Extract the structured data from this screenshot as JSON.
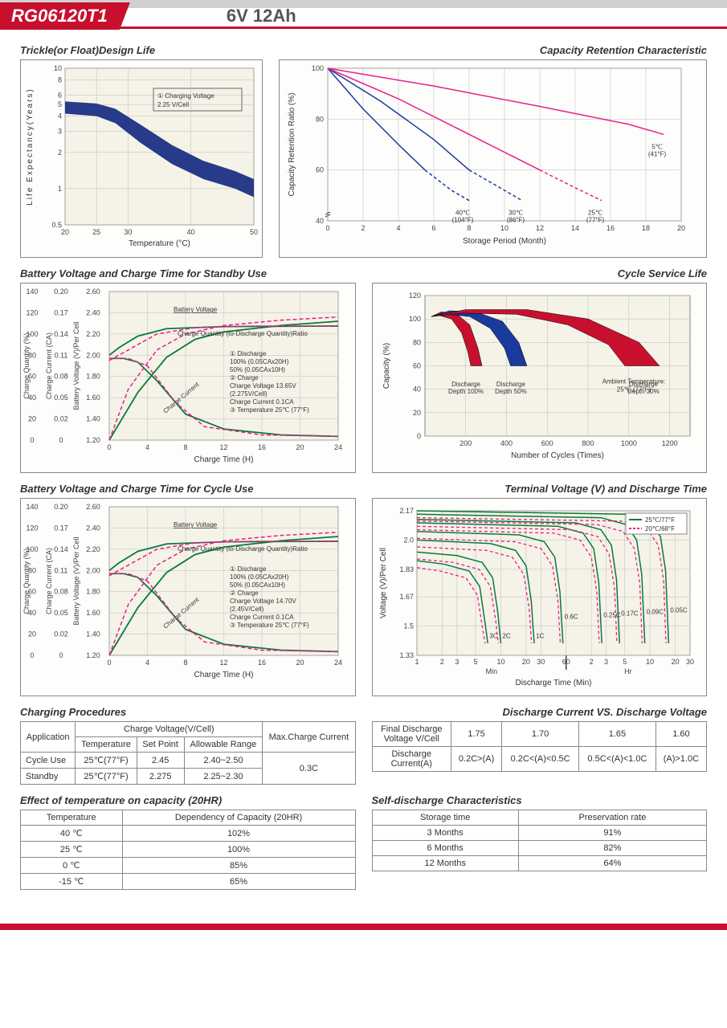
{
  "header": {
    "model": "RG06120T1",
    "spec": "6V  12Ah"
  },
  "charts": {
    "trickle": {
      "title": "Trickle(or Float)Design Life",
      "xlabel": "Temperature (°C)",
      "ylabel": "Life Expectancy(Years)",
      "annotation": "① Charging Voltage\n    2.25 V/Cell",
      "xticks": [
        "20",
        "25",
        "30",
        "40",
        "50"
      ],
      "yticks": [
        "0.5",
        "1",
        "2",
        "3",
        "4",
        "5",
        "6",
        "8",
        "10"
      ],
      "band_upper": [
        [
          20,
          5.3
        ],
        [
          25,
          5.1
        ],
        [
          28,
          4.6
        ],
        [
          32,
          3.4
        ],
        [
          37,
          2.3
        ],
        [
          42,
          1.7
        ],
        [
          47,
          1.4
        ],
        [
          50,
          1.2
        ]
      ],
      "band_lower": [
        [
          20,
          4.2
        ],
        [
          25,
          4.0
        ],
        [
          28,
          3.5
        ],
        [
          32,
          2.4
        ],
        [
          37,
          1.6
        ],
        [
          42,
          1.2
        ],
        [
          47,
          1.0
        ],
        [
          50,
          0.85
        ]
      ],
      "band_color": "#283a8a",
      "bg": "#f5f3e8"
    },
    "retention": {
      "title": "Capacity Retention Characteristic",
      "xlabel": "Storage Period (Month)",
      "ylabel": "Capacity Retention Ratio (%)",
      "xticks": [
        "0",
        "2",
        "4",
        "6",
        "8",
        "10",
        "12",
        "14",
        "16",
        "18",
        "20"
      ],
      "yticks": [
        "40",
        "60",
        "80",
        "100"
      ],
      "lines": [
        {
          "label": "40℃\n(104°F)",
          "color": "#1a3a9e",
          "solid_pts": [
            [
              0,
              100
            ],
            [
              2,
              84
            ],
            [
              4,
              70
            ],
            [
              5.5,
              60
            ]
          ],
          "dash_pts": [
            [
              5.5,
              60
            ],
            [
              7,
              52
            ],
            [
              8,
              48
            ]
          ]
        },
        {
          "label": "30℃\n(86°F)",
          "color": "#1a3a9e",
          "solid_pts": [
            [
              0,
              100
            ],
            [
              3,
              87
            ],
            [
              6,
              72
            ],
            [
              8,
              60
            ]
          ],
          "dash_pts": [
            [
              8,
              60
            ],
            [
              10,
              52
            ],
            [
              11,
              48
            ]
          ]
        },
        {
          "label": "25℃\n(77°F)",
          "color": "#e91e8c",
          "solid_pts": [
            [
              0,
              100
            ],
            [
              4,
              88
            ],
            [
              8,
              74
            ],
            [
              12,
              60
            ]
          ],
          "dash_pts": [
            [
              12,
              60
            ],
            [
              14,
              53
            ],
            [
              15.5,
              48
            ]
          ]
        },
        {
          "label": "5℃\n(41°F)",
          "color": "#e91e8c",
          "solid_pts": [
            [
              0,
              100
            ],
            [
              6,
              93
            ],
            [
              12,
              85
            ],
            [
              17,
              78
            ],
            [
              19,
              74
            ]
          ],
          "dash_pts": []
        }
      ]
    },
    "standby": {
      "title": "Battery Voltage and Charge Time for Standby Use",
      "xlabel": "Charge Time (H)",
      "y1_label": "Charge Quantity (%)",
      "y2_label": "Charge Current (CA)",
      "y3_label": "Battery Voltage (V)/Per Cell",
      "xticks": [
        "0",
        "4",
        "8",
        "12",
        "16",
        "20",
        "24"
      ],
      "y1_ticks": [
        "0",
        "20",
        "40",
        "60",
        "80",
        "100",
        "120",
        "140"
      ],
      "y2_ticks": [
        "0",
        "0.02",
        "0.05",
        "0.08",
        "0.11",
        "0.14",
        "0.17",
        "0.20"
      ],
      "y3_ticks": [
        "",
        "1.20",
        "1.40",
        "1.60",
        "1.80",
        "2.00",
        "2.20",
        "2.40",
        "2.60"
      ],
      "notes": [
        "Battery Voltage",
        "Charge Quantity (to-Discharge Quantity)Ratio",
        "① Discharge",
        "   100% (0.05CAx20H)",
        "   50% (0.05CAx10H)",
        "② Charge",
        "   Charge Voltage 13.65V",
        "   (2.275V/Cell)",
        "   Charge Current 0.1CA",
        "③ Temperature 25℃ (77°F)",
        "Charge Current"
      ],
      "green_solid": [
        [
          [
            0,
            0.11
          ],
          [
            1.5,
            0.11
          ],
          [
            3,
            0.105
          ],
          [
            5,
            0.08
          ],
          [
            8,
            0.035
          ],
          [
            12,
            0.015
          ],
          [
            18,
            0.007
          ],
          [
            24,
            0.005
          ]
        ],
        [
          [
            0,
            2.0
          ],
          [
            1,
            2.07
          ],
          [
            3,
            2.18
          ],
          [
            6,
            2.25
          ],
          [
            12,
            2.27
          ],
          [
            24,
            2.275
          ]
        ],
        [
          [
            0,
            0
          ],
          [
            3,
            45
          ],
          [
            6,
            78
          ],
          [
            9,
            95
          ],
          [
            12,
            102
          ],
          [
            18,
            108
          ],
          [
            24,
            112
          ]
        ]
      ],
      "pink_dash": [
        [
          [
            0,
            0.11
          ],
          [
            2,
            0.11
          ],
          [
            4,
            0.1
          ],
          [
            7,
            0.05
          ],
          [
            10,
            0.018
          ],
          [
            16,
            0.007
          ],
          [
            24,
            0.005
          ]
        ],
        [
          [
            0,
            1.95
          ],
          [
            2,
            2.05
          ],
          [
            5,
            2.2
          ],
          [
            9,
            2.26
          ],
          [
            15,
            2.275
          ],
          [
            24,
            2.275
          ]
        ],
        [
          [
            0,
            0
          ],
          [
            2,
            48
          ],
          [
            5,
            85
          ],
          [
            8,
            100
          ],
          [
            12,
            108
          ],
          [
            18,
            113
          ],
          [
            24,
            116
          ]
        ]
      ],
      "line_colors": {
        "green": "#0a7a3a",
        "pink": "#e91e8c"
      }
    },
    "cycle_life": {
      "title": "Cycle Service Life",
      "xlabel": "Number of Cycles (Times)",
      "ylabel": "Capacity (%)",
      "xticks": [
        "200",
        "400",
        "600",
        "800",
        "1000",
        "1200"
      ],
      "yticks": [
        "0",
        "20",
        "40",
        "60",
        "80",
        "100",
        "120"
      ],
      "ambient": "Ambient Temperature:\n25℃ (77°F)",
      "regions": [
        {
          "label": "Discharge\nDepth 100%",
          "color": "#c8102e",
          "outer": [
            [
              30,
              102
            ],
            [
              80,
              106
            ],
            [
              150,
              105
            ],
            [
              220,
              95
            ],
            [
              260,
              75
            ],
            [
              280,
              60
            ]
          ],
          "inner": [
            [
              30,
              102
            ],
            [
              70,
              103
            ],
            [
              130,
              100
            ],
            [
              180,
              88
            ],
            [
              210,
              72
            ],
            [
              225,
              60
            ]
          ]
        },
        {
          "label": "Discharge\nDepth 50%",
          "color": "#1a3a9e",
          "outer": [
            [
              30,
              102
            ],
            [
              120,
              107
            ],
            [
              250,
              106
            ],
            [
              380,
              98
            ],
            [
              460,
              80
            ],
            [
              500,
              60
            ]
          ],
          "inner": [
            [
              30,
              102
            ],
            [
              110,
              104
            ],
            [
              220,
              102
            ],
            [
              320,
              92
            ],
            [
              390,
              75
            ],
            [
              420,
              60
            ]
          ]
        },
        {
          "label": "Discharge\nDepth 30%",
          "color": "#c8102e",
          "outer": [
            [
              30,
              102
            ],
            [
              200,
              108
            ],
            [
              500,
              108
            ],
            [
              800,
              100
            ],
            [
              1050,
              80
            ],
            [
              1150,
              60
            ]
          ],
          "inner": [
            [
              30,
              102
            ],
            [
              180,
              105
            ],
            [
              450,
              104
            ],
            [
              700,
              95
            ],
            [
              900,
              78
            ],
            [
              980,
              60
            ]
          ]
        }
      ]
    },
    "cycle_use": {
      "title": "Battery Voltage and Charge Time for Cycle Use",
      "xlabel": "Charge Time (H)",
      "xticks": [
        "0",
        "4",
        "8",
        "12",
        "16",
        "20",
        "24"
      ],
      "notes": [
        "Battery Voltage",
        "Charge Quantity (to-Discharge Quantity)Ratio",
        "① Discharge",
        "   100% (0.05CAx20H)",
        "   50% (0.05CAx10H)",
        "② Charge",
        "   Charge Voltage 14.70V",
        "   (2.45V/Cell)",
        "   Charge Current 0.1CA",
        "③ Temperature 25℃ (77°F)",
        "Charge Current"
      ]
    },
    "terminal": {
      "title": "Terminal Voltage (V) and Discharge Time",
      "xlabel": "Discharge Time (Min)",
      "ylabel": "Voltage (V)/Per Cell",
      "legend": [
        "25℃/77°F",
        "20℃/68°F"
      ],
      "legend_colors": [
        "#0a7a3a",
        "#e91e8c"
      ],
      "yticks": [
        "1.33",
        "1.5",
        "1.67",
        "1.83",
        "2.0",
        "2.17"
      ],
      "xticks_min": [
        "1",
        "2",
        "3",
        "5",
        "10",
        "20",
        "30",
        "60"
      ],
      "xticks_hr": [
        "2",
        "3",
        "5",
        "10",
        "20",
        "30"
      ],
      "xsection": [
        "Min",
        "Hr"
      ],
      "rate_labels": [
        "3C",
        "2C",
        "1C",
        "0.6C",
        "0.25C",
        "0.17C",
        "0.09C",
        "0.05C"
      ],
      "curves": [
        {
          "x_end": 7,
          "start_v": 1.88
        },
        {
          "x_end": 10,
          "start_v": 1.93
        },
        {
          "x_end": 25,
          "start_v": 2.0
        },
        {
          "x_end": 55,
          "start_v": 2.05
        },
        {
          "x_end": 160,
          "start_v": 2.1
        },
        {
          "x_end": 260,
          "start_v": 2.12
        },
        {
          "x_end": 520,
          "start_v": 2.15
        },
        {
          "x_end": 1000,
          "start_v": 2.17
        }
      ]
    }
  },
  "tables": {
    "charging": {
      "title": "Charging Procedures",
      "headers": {
        "app": "Application",
        "cv": "Charge Voltage(V/Cell)",
        "temp": "Temperature",
        "sp": "Set Point",
        "ar": "Allowable Range",
        "max": "Max.Charge Current"
      },
      "rows": [
        {
          "app": "Cycle Use",
          "temp": "25℃(77°F)",
          "sp": "2.45",
          "ar": "2.40~2.50"
        },
        {
          "app": "Standby",
          "temp": "25℃(77°F)",
          "sp": "2.275",
          "ar": "2.25~2.30"
        }
      ],
      "max_current": "0.3C"
    },
    "discharge_vs": {
      "title": "Discharge Current VS. Discharge Voltage",
      "h1": "Final Discharge\nVoltage V/Cell",
      "h2": "Discharge\nCurrent(A)",
      "vrow": [
        "1.75",
        "1.70",
        "1.65",
        "1.60"
      ],
      "crow": [
        "0.2C>(A)",
        "0.2C<(A)<0.5C",
        "0.5C<(A)<1.0C",
        "(A)>1.0C"
      ]
    },
    "temp_effect": {
      "title": "Effect of temperature on capacity (20HR)",
      "headers": [
        "Temperature",
        "Dependency of Capacity (20HR)"
      ],
      "rows": [
        [
          "40 ℃",
          "102%"
        ],
        [
          "25 ℃",
          "100%"
        ],
        [
          "0 ℃",
          "85%"
        ],
        [
          "-15 ℃",
          "65%"
        ]
      ]
    },
    "self_discharge": {
      "title": "Self-discharge Characteristics",
      "headers": [
        "Storage time",
        "Preservation rate"
      ],
      "rows": [
        [
          "3 Months",
          "91%"
        ],
        [
          "6 Months",
          "82%"
        ],
        [
          "12 Months",
          "64%"
        ]
      ]
    }
  }
}
